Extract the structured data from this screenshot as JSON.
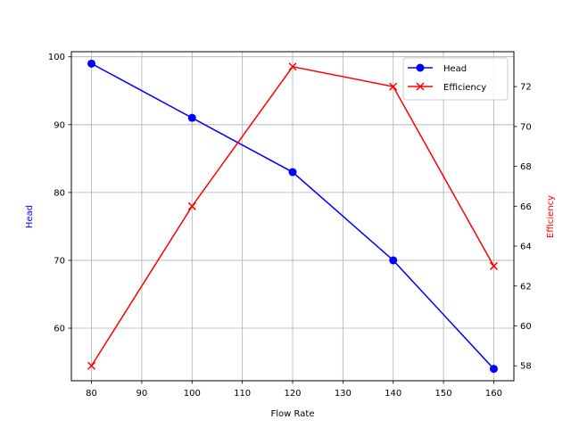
{
  "chart_data": {
    "type": "line",
    "title": "",
    "x": [
      80,
      100,
      120,
      140,
      160
    ],
    "xlabel": "Flow Rate",
    "xlim": [
      76,
      164
    ],
    "xticks": [
      80,
      90,
      100,
      110,
      120,
      130,
      140,
      150,
      160
    ],
    "grid": true,
    "legend_position": "upper right",
    "series": [
      {
        "name": "Head",
        "axis": "left",
        "color": "#0000ff",
        "marker": "o",
        "values": [
          99,
          91,
          83,
          70,
          54
        ]
      },
      {
        "name": "Efficiency",
        "axis": "right",
        "color": "#ff0000",
        "marker": "x",
        "values": [
          58,
          66,
          73,
          72,
          63
        ]
      }
    ],
    "ylabel": "Head",
    "ylabel_color": "#0000ff",
    "ylim": [
      52.25,
      100.75
    ],
    "yticks": [
      60,
      70,
      80,
      90,
      100
    ],
    "y2label": "Efficiency",
    "y2label_color": "#ff0000",
    "y2lim": [
      57.25,
      73.75
    ],
    "y2ticks": [
      58,
      60,
      62,
      64,
      66,
      68,
      70,
      72
    ]
  },
  "labels": {
    "xlabel": "Flow Rate",
    "ylabel": "Head",
    "y2label": "Efficiency",
    "legend": [
      "Head",
      "Efficiency"
    ]
  }
}
